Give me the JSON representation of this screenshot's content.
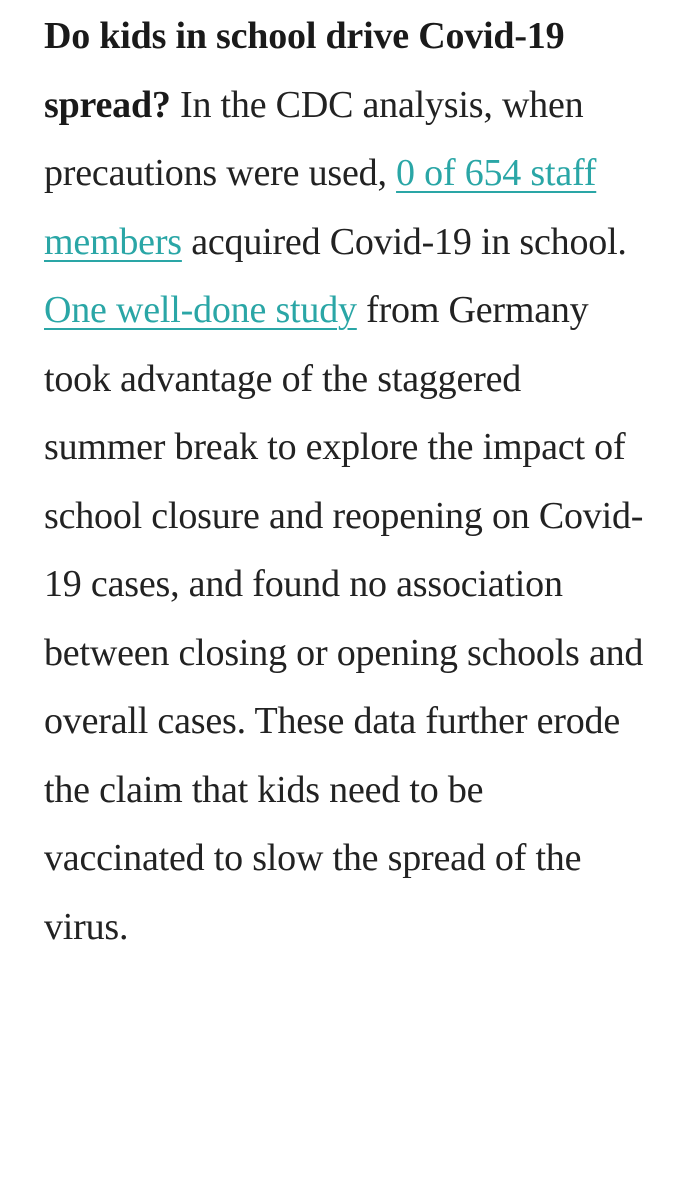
{
  "article": {
    "lead": "Do kids in school drive Covid-19 spread?",
    "text_1": " In the CDC analysis, when precautions were used, ",
    "link_1": "0 of 654 staff members",
    "text_2": " acquired Covid-19 in school. ",
    "link_2": "One well-done study",
    "text_3": " from Germany took advantage of the staggered summer break to explore the impact of school closure and reopening on Covid-19 cases, and found no association between closing or opening schools and overall cases. These data further erode the claim that kids need to be vaccinated to slow the spread of the virus."
  },
  "colors": {
    "text": "#222222",
    "link": "#2aa6a6",
    "background": "#ffffff"
  }
}
